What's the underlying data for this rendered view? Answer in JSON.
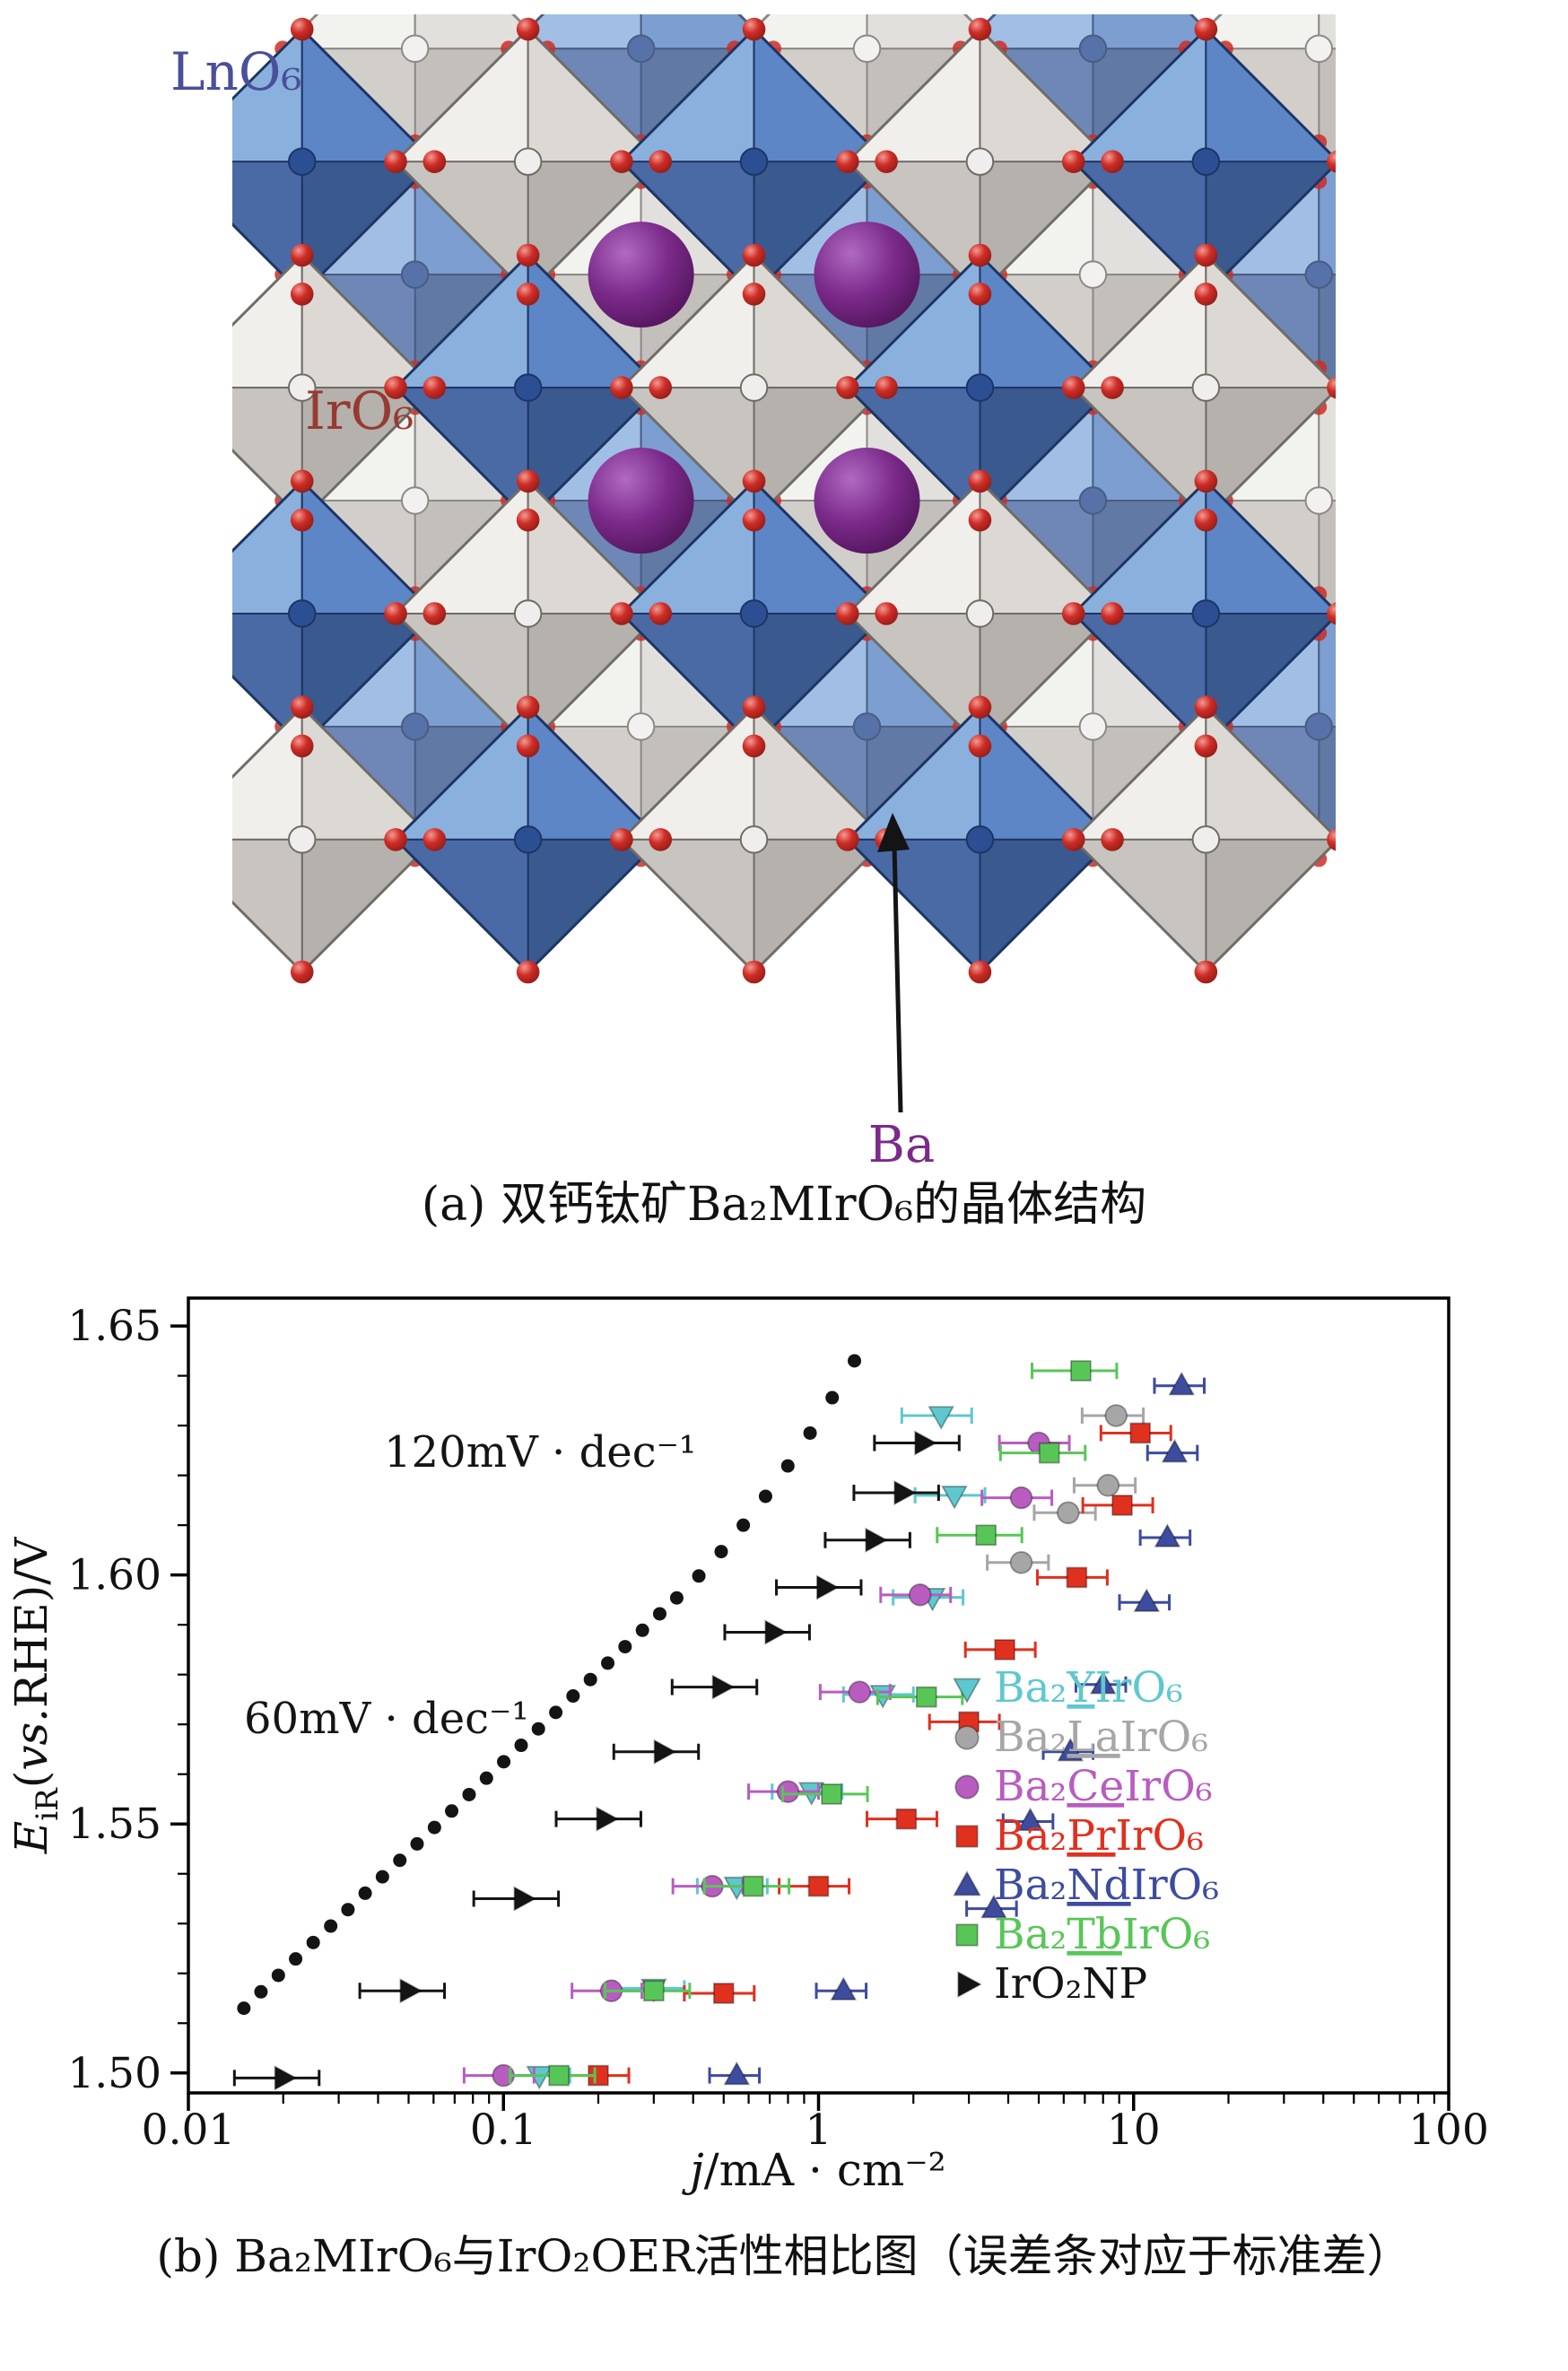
{
  "figure_a": {
    "label_lno6": "LnO₆",
    "label_iro6": "IrO₆",
    "label_ba": "Ba",
    "caption": "(a) 双钙钛矿Ba₂MIrO₆的晶体结构",
    "colors": {
      "lno6_label": "#4a4f9a",
      "iro6_label": "#963a32",
      "ba_label": "#7b2a8a",
      "octa_blue_faces": [
        "#8ab0de",
        "#5d86c6",
        "#39598f",
        "#4a6aa6"
      ],
      "octa_blue_edge": "#1c3564",
      "octa_blue_center": "#2c4f93",
      "octa_gray_faces": [
        "#f0efec",
        "#dcd9d5",
        "#b5b1ac",
        "#c8c4bf"
      ],
      "octa_gray_edge": "#6f6c68",
      "octa_gray_center": "#efeeec",
      "oxygen_red": "#cf2d26",
      "oxygen_red_dark": "#8c1b16",
      "barium_purple": "#7b2a8a",
      "barium_purple_light": "#b06ac2",
      "barium_purple_dark": "#55165f"
    }
  },
  "figure_b": {
    "caption": "(b) Ba₂MIrO₆与IrO₂OER活性相比图（误差条对应于标准差）",
    "annotation_120": "120mV · dec⁻¹",
    "annotation_60": "60mV · dec⁻¹",
    "y_label": {
      "e": "E",
      "sub": "iR",
      "paren": "(",
      "vs": "vs.",
      "rest": "RHE)/V"
    },
    "x_label": {
      "j": "j",
      "rest": "/mA · cm⁻²"
    }
  },
  "chart_data": {
    "type": "scatter",
    "x_scale": "log",
    "xlim": [
      0.01,
      100
    ],
    "ylim": [
      1.496,
      1.6556
    ],
    "x_ticks": [
      0.01,
      0.1,
      1,
      10,
      100
    ],
    "x_tick_labels": [
      "0.01",
      "0.1",
      "1",
      "10",
      "100"
    ],
    "y_ticks": [
      1.5,
      1.55,
      1.6,
      1.65
    ],
    "y_tick_labels": [
      "1.50",
      "1.55",
      "1.60",
      "1.65"
    ],
    "xlabel": "j/mA · cm⁻²",
    "ylabel": "EiR(vs.RHE)/V",
    "legend_position": "right-middle",
    "tafel_slopes": [
      "120mV · dec⁻¹",
      "60mV · dec⁻¹"
    ],
    "tafel_curve": {
      "color": "#141414",
      "points": [
        [
          0.015,
          1.513
        ],
        [
          0.017,
          1.5163
        ],
        [
          0.0193,
          1.5196
        ],
        [
          0.0219,
          1.5229
        ],
        [
          0.0249,
          1.5262
        ],
        [
          0.0283,
          1.5295
        ],
        [
          0.0321,
          1.5328
        ],
        [
          0.0364,
          1.5361
        ],
        [
          0.0413,
          1.5394
        ],
        [
          0.0469,
          1.5427
        ],
        [
          0.0532,
          1.546
        ],
        [
          0.0604,
          1.5493
        ],
        [
          0.0685,
          1.5526
        ],
        [
          0.0778,
          1.5559
        ],
        [
          0.0883,
          1.5592
        ],
        [
          0.1002,
          1.5625
        ],
        [
          0.1138,
          1.5658
        ],
        [
          0.1291,
          1.5691
        ],
        [
          0.1466,
          1.5724
        ],
        [
          0.1663,
          1.5757
        ],
        [
          0.1888,
          1.579
        ],
        [
          0.2143,
          1.5823
        ],
        [
          0.2432,
          1.5856
        ],
        [
          0.2761,
          1.5889
        ],
        [
          0.3133,
          1.5922
        ],
        [
          0.3548,
          1.5954
        ],
        [
          0.417,
          1.5998
        ],
        [
          0.491,
          1.6047
        ],
        [
          0.577,
          1.61
        ],
        [
          0.679,
          1.6158
        ],
        [
          0.799,
          1.6219
        ],
        [
          0.94,
          1.6285
        ],
        [
          1.105,
          1.6356
        ],
        [
          1.3,
          1.643
        ]
      ]
    },
    "series": [
      {
        "id": "Ba2YIrO6",
        "marker": "triangle-down",
        "color": "#5ec8cf",
        "xerr_frac": 0.25,
        "legend": {
          "pre": "Ba₂",
          "m": "Y",
          "post": "IrO₆"
        },
        "points": [
          [
            0.13,
            1.4995
          ],
          [
            0.3,
            1.517
          ],
          [
            0.55,
            1.5375
          ],
          [
            0.95,
            1.5565
          ],
          [
            1.6,
            1.576
          ],
          [
            2.3,
            1.5955
          ],
          [
            2.7,
            1.616
          ],
          [
            2.45,
            1.632
          ]
        ]
      },
      {
        "id": "Ba2LaIrO6",
        "marker": "circle",
        "color": "#a6a6a6",
        "xerr_frac": 0.22,
        "legend": {
          "pre": "Ba₂",
          "m": "La",
          "post": "IrO₆"
        },
        "points": [
          [
            4.4,
            1.6025
          ],
          [
            6.2,
            1.6125
          ],
          [
            8.3,
            1.618
          ],
          [
            8.8,
            1.632
          ]
        ]
      },
      {
        "id": "Ba2CeIrO6",
        "marker": "circle",
        "color": "#b95cc0",
        "xerr_frac": 0.25,
        "legend": {
          "pre": "Ba₂",
          "m": "Ce",
          "post": "IrO₆"
        },
        "points": [
          [
            0.1,
            1.4995
          ],
          [
            0.22,
            1.5165
          ],
          [
            0.46,
            1.5375
          ],
          [
            0.8,
            1.5565
          ],
          [
            1.35,
            1.5765
          ],
          [
            2.1,
            1.596
          ],
          [
            4.4,
            1.6155
          ],
          [
            5.0,
            1.6265
          ]
        ]
      },
      {
        "id": "Ba2PrIrO6",
        "marker": "square",
        "color": "#e0301e",
        "xerr_frac": 0.25,
        "legend": {
          "pre": "Ba₂",
          "m": "Pr",
          "post": "IrO₆"
        },
        "points": [
          [
            0.2,
            1.4995
          ],
          [
            0.5,
            1.516
          ],
          [
            1.0,
            1.5375
          ],
          [
            1.9,
            1.551
          ],
          [
            3.0,
            1.5705
          ],
          [
            3.9,
            1.585
          ],
          [
            6.6,
            1.5995
          ],
          [
            9.2,
            1.614
          ],
          [
            10.5,
            1.6285
          ]
        ]
      },
      {
        "id": "Ba2NdIrO6",
        "marker": "triangle-up",
        "color": "#3d4c9e",
        "xerr_frac": 0.18,
        "legend": {
          "pre": "Ba₂",
          "m": "Nd",
          "post": "IrO₆"
        },
        "points": [
          [
            0.55,
            1.4995
          ],
          [
            1.2,
            1.5165
          ],
          [
            3.6,
            1.533
          ],
          [
            4.7,
            1.5505
          ],
          [
            6.3,
            1.5645
          ],
          [
            8.0,
            1.578
          ],
          [
            11.0,
            1.5945
          ],
          [
            12.8,
            1.6075
          ],
          [
            13.5,
            1.6245
          ],
          [
            14.2,
            1.638
          ]
        ]
      },
      {
        "id": "Ba2TbIrO6",
        "marker": "square",
        "color": "#58c657",
        "xerr_frac": 0.3,
        "legend": {
          "pre": "Ba₂",
          "m": "Tb",
          "post": "IrO₆"
        },
        "points": [
          [
            0.15,
            1.4995
          ],
          [
            0.3,
            1.5165
          ],
          [
            0.62,
            1.5375
          ],
          [
            1.1,
            1.556
          ],
          [
            2.2,
            1.5755
          ],
          [
            3.4,
            1.608
          ],
          [
            5.4,
            1.6245
          ],
          [
            6.8,
            1.641
          ]
        ]
      },
      {
        "id": "IrO2NP",
        "marker": "triangle-right",
        "color": "#141414",
        "xerr_frac": 0.3,
        "legend": {
          "label": "IrO₂NP"
        },
        "points": [
          [
            0.02,
            1.499
          ],
          [
            0.05,
            1.5165
          ],
          [
            0.115,
            1.535
          ],
          [
            0.21,
            1.551
          ],
          [
            0.32,
            1.5645
          ],
          [
            0.49,
            1.5775
          ],
          [
            0.72,
            1.5885
          ],
          [
            1.05,
            1.5975
          ],
          [
            1.5,
            1.607
          ],
          [
            1.85,
            1.6165
          ],
          [
            2.15,
            1.6265
          ]
        ]
      }
    ]
  }
}
